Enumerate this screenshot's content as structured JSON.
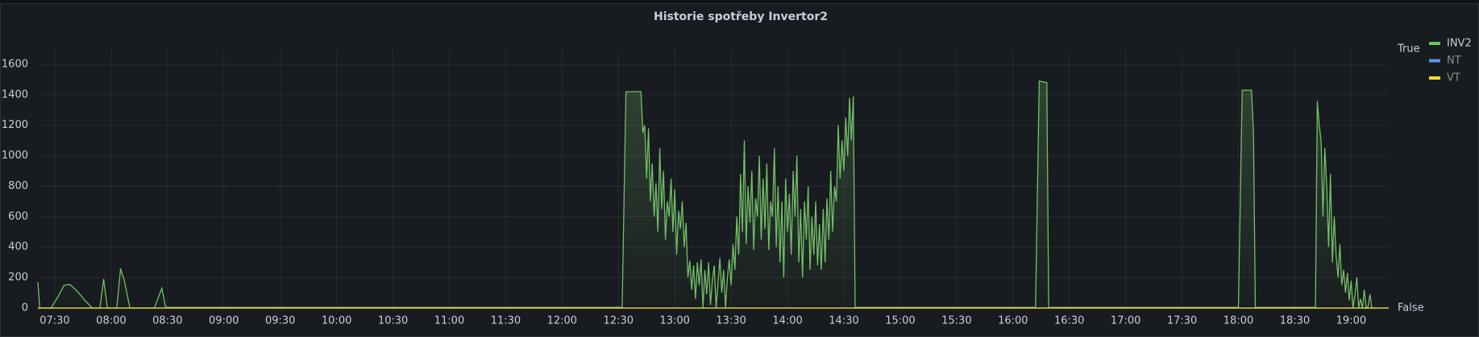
{
  "chart_data": {
    "type": "line",
    "title": "Historie spotřeby Invertor2",
    "xlim": [
      441,
      1160
    ],
    "xticks": [
      {
        "value": 450,
        "label": "07:30"
      },
      {
        "value": 480,
        "label": "08:00"
      },
      {
        "value": 510,
        "label": "08:30"
      },
      {
        "value": 540,
        "label": "09:00"
      },
      {
        "value": 570,
        "label": "09:30"
      },
      {
        "value": 600,
        "label": "10:00"
      },
      {
        "value": 630,
        "label": "10:30"
      },
      {
        "value": 660,
        "label": "11:00"
      },
      {
        "value": 690,
        "label": "11:30"
      },
      {
        "value": 720,
        "label": "12:00"
      },
      {
        "value": 750,
        "label": "12:30"
      },
      {
        "value": 780,
        "label": "13:00"
      },
      {
        "value": 810,
        "label": "13:30"
      },
      {
        "value": 840,
        "label": "14:00"
      },
      {
        "value": 870,
        "label": "14:30"
      },
      {
        "value": 900,
        "label": "15:00"
      },
      {
        "value": 930,
        "label": "15:30"
      },
      {
        "value": 960,
        "label": "16:00"
      },
      {
        "value": 990,
        "label": "16:30"
      },
      {
        "value": 1020,
        "label": "17:00"
      },
      {
        "value": 1050,
        "label": "17:30"
      },
      {
        "value": 1080,
        "label": "18:00"
      },
      {
        "value": 1110,
        "label": "18:30"
      },
      {
        "value": 1140,
        "label": "19:00"
      }
    ],
    "ylim": [
      0,
      1700
    ],
    "yticks": [
      0,
      200,
      400,
      600,
      800,
      1000,
      1200,
      1400,
      1600
    ],
    "y2lim": [
      0,
      1
    ],
    "y2ticks": [
      {
        "value": 0,
        "label": "False"
      },
      {
        "value": 1,
        "label": "True"
      }
    ],
    "grid": true,
    "legend": "right",
    "series": [
      {
        "name": "INV2",
        "color": "#73bf69",
        "x": [
          441,
          442,
          448,
          452,
          455,
          458,
          462,
          466,
          470,
          474,
          476,
          478,
          483,
          485,
          487,
          490,
          503,
          507,
          509,
          752,
          754,
          762,
          763,
          764,
          765,
          766,
          767,
          768,
          769,
          770,
          771,
          772,
          773,
          774,
          775,
          776,
          777,
          778,
          779,
          780,
          781,
          782,
          783,
          784,
          785,
          786,
          787,
          788,
          789,
          790,
          791,
          792,
          793,
          794,
          795,
          796,
          797,
          798,
          799,
          800,
          801,
          802,
          803,
          804,
          805,
          806,
          807,
          808,
          809,
          810,
          811,
          812,
          813,
          814,
          815,
          816,
          817,
          818,
          819,
          820,
          821,
          822,
          823,
          824,
          825,
          826,
          827,
          828,
          829,
          830,
          831,
          832,
          833,
          834,
          835,
          836,
          837,
          838,
          839,
          840,
          841,
          842,
          843,
          844,
          845,
          846,
          847,
          848,
          849,
          850,
          851,
          852,
          853,
          854,
          855,
          856,
          857,
          858,
          859,
          860,
          861,
          862,
          863,
          864,
          865,
          866,
          867,
          868,
          869,
          870,
          871,
          872,
          873,
          874,
          875,
          876,
          877,
          972,
          974,
          978,
          979,
          980,
          1080,
          1082,
          1087,
          1088,
          1089,
          1090,
          1120,
          1121,
          1122,
          1123,
          1124,
          1125,
          1126,
          1127,
          1128,
          1129,
          1130,
          1131,
          1132,
          1133,
          1134,
          1135,
          1136,
          1137,
          1138,
          1139,
          1140,
          1141,
          1142,
          1143,
          1144,
          1145,
          1146,
          1147,
          1148,
          1149,
          1150,
          1151,
          1152,
          1153
        ],
        "values": [
          170,
          0,
          0,
          80,
          150,
          155,
          110,
          50,
          0,
          0,
          190,
          0,
          0,
          260,
          180,
          0,
          0,
          130,
          5,
          5,
          1420,
          1420,
          1150,
          1200,
          850,
          1180,
          700,
          950,
          600,
          820,
          500,
          1050,
          650,
          900,
          450,
          700,
          600,
          850,
          500,
          780,
          350,
          640,
          520,
          700,
          400,
          560,
          200,
          310,
          120,
          280,
          60,
          300,
          150,
          320,
          0,
          250,
          90,
          300,
          20,
          180,
          280,
          0,
          160,
          330,
          100,
          250,
          0,
          200,
          320,
          150,
          420,
          250,
          600,
          350,
          880,
          500,
          1100,
          420,
          800,
          560,
          900,
          380,
          720,
          600,
          1000,
          450,
          850,
          520,
          950,
          380,
          700,
          600,
          1050,
          400,
          800,
          300,
          700,
          200,
          850,
          500,
          750,
          350,
          900,
          600,
          1000,
          300,
          650,
          200,
          700,
          450,
          800,
          250,
          600,
          350,
          700,
          280,
          550,
          250,
          650,
          300,
          720,
          450,
          900,
          500,
          800,
          700,
          1200,
          850,
          1100,
          900,
          1250,
          1000,
          1380,
          1100,
          1390,
          0,
          5,
          5,
          1490,
          1480,
          0,
          5,
          5,
          1430,
          1430,
          1150,
          0,
          5,
          5,
          0,
          1360,
          1200,
          1100,
          600,
          1050,
          800,
          400,
          880,
          300,
          600,
          350,
          200,
          420,
          150,
          250,
          100,
          230,
          50,
          180,
          0,
          80,
          200,
          0,
          60,
          0,
          120,
          0,
          10,
          90,
          0,
          0,
          0
        ]
      },
      {
        "name": "NT",
        "color": "#5794f2",
        "axis": "y2",
        "x": [
          441,
          1160
        ],
        "values": [
          0,
          0
        ]
      },
      {
        "name": "VT",
        "color": "#fade2a",
        "axis": "y2",
        "x": [
          441,
          1160
        ],
        "values": [
          0,
          0
        ]
      }
    ]
  }
}
